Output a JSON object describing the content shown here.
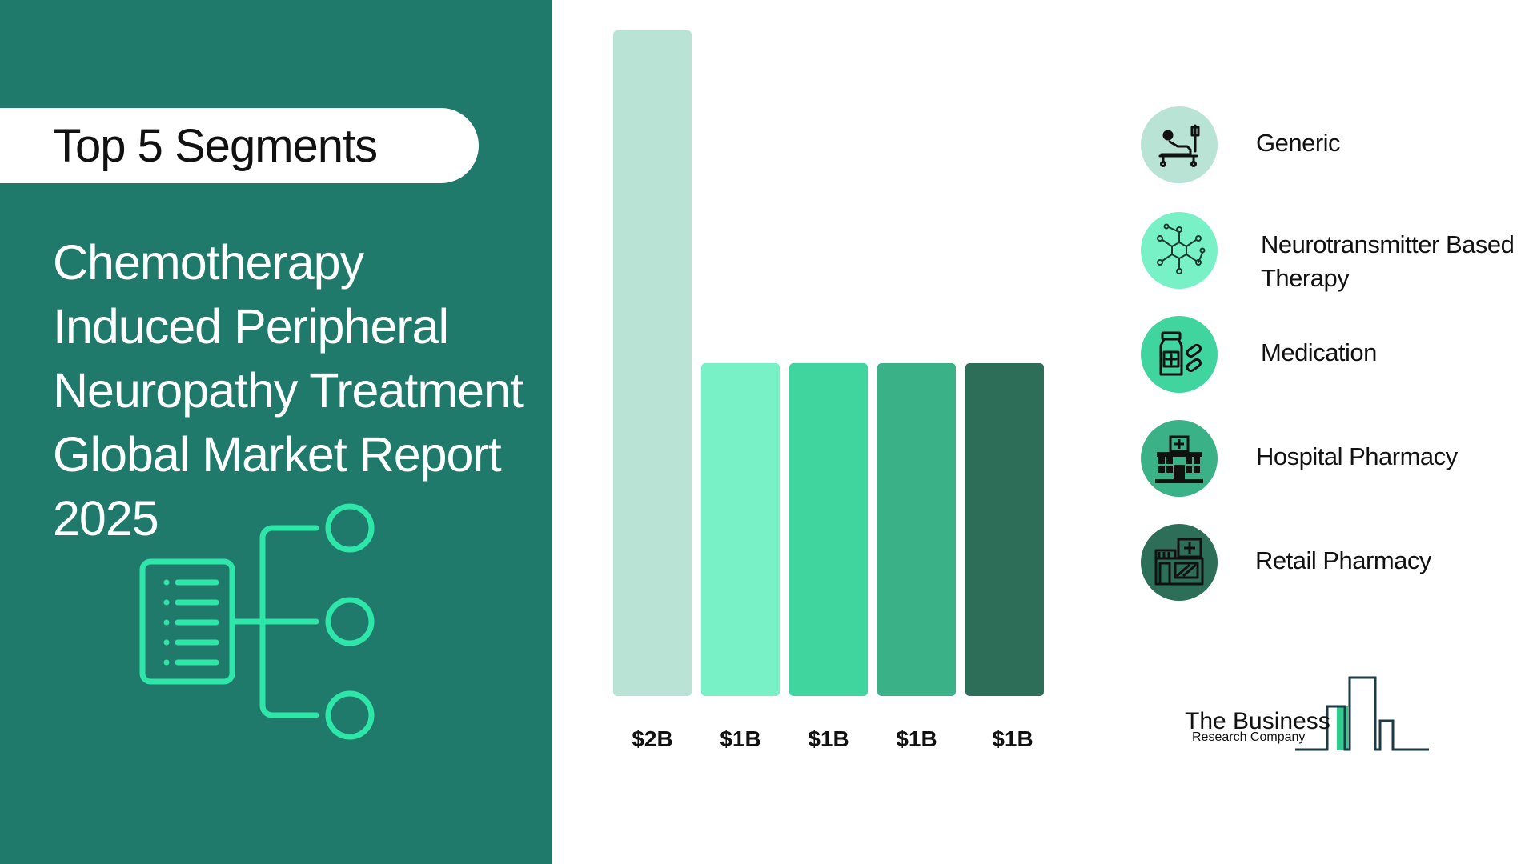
{
  "header": {
    "pill_label": "Top 5 Segments",
    "title_lines": [
      "Chemotherapy",
      "Induced Peripheral",
      "Neuropathy Treatment",
      "Global Market Report",
      "2025"
    ]
  },
  "chart_data": {
    "type": "bar",
    "categories": [
      "Generic",
      "Neurotransmitter Based Therapy",
      "Medication",
      "Hospital Pharmacy",
      "Retail Pharmacy"
    ],
    "values": [
      2,
      1,
      1,
      1,
      1
    ],
    "value_labels": [
      "$2B",
      "$1B",
      "$1B",
      "$1B",
      "$1B"
    ],
    "unit": "$B",
    "colors": [
      "#b9e3d4",
      "#77f1c5",
      "#40d59f",
      "#3bb187",
      "#2d6e59"
    ],
    "ylim": [
      0,
      2
    ],
    "grid": false,
    "legend": "right"
  },
  "legend": [
    {
      "label": "Generic",
      "icon": "hospital-bed-icon",
      "color": "#b9e3d4"
    },
    {
      "label": "Neurotransmitter Based Therapy",
      "icon": "molecule-network-icon",
      "color": "#77f1c5"
    },
    {
      "label": "Medication",
      "icon": "medicine-bottle-pills-icon",
      "color": "#40d59f"
    },
    {
      "label": "Hospital Pharmacy",
      "icon": "hospital-building-icon",
      "color": "#3bb187"
    },
    {
      "label": "Retail Pharmacy",
      "icon": "pharmacy-store-icon",
      "color": "#2d6e59"
    }
  ],
  "logo": {
    "line1": "The Business",
    "line2": "Research Company"
  }
}
